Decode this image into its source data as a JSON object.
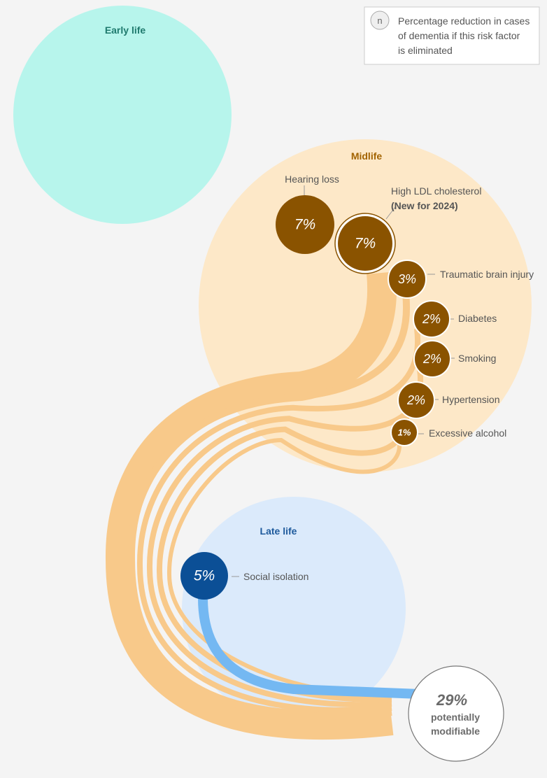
{
  "colors": {
    "early_life": "#b7f5ec",
    "midlife": "#fde8c8",
    "late_life": "#dbeafb",
    "midlife_factor": "#8a5300",
    "late_life_factor": "#0b4f96",
    "midlife_flow": "#f8c98a",
    "late_life_flow": "#74b8f2"
  },
  "legend": {
    "symbol": "n",
    "line1": "Percentage reduction in cases",
    "line2": "of dementia if this risk factor",
    "line3": "is eliminated"
  },
  "stages": {
    "early_life": "Early life",
    "midlife": "Midlife",
    "late_life": "Late life"
  },
  "factors": {
    "hearing_loss": {
      "label": "Hearing loss",
      "value": "7%"
    },
    "ldl": {
      "label": "High LDL cholesterol",
      "note": "(New for 2024)",
      "value": "7%"
    },
    "tbi": {
      "label": "Traumatic brain injury",
      "value": "3%"
    },
    "diabetes": {
      "label": "Diabetes",
      "value": "2%"
    },
    "smoking": {
      "label": "Smoking",
      "value": "2%"
    },
    "hypertension": {
      "label": "Hypertension",
      "value": "2%"
    },
    "alcohol": {
      "label": "Excessive alcohol",
      "value": "1%"
    },
    "social_isolation": {
      "label": "Social isolation",
      "value": "5%"
    }
  },
  "total": {
    "value": "29%",
    "line1": "potentially",
    "line2": "modifiable"
  }
}
